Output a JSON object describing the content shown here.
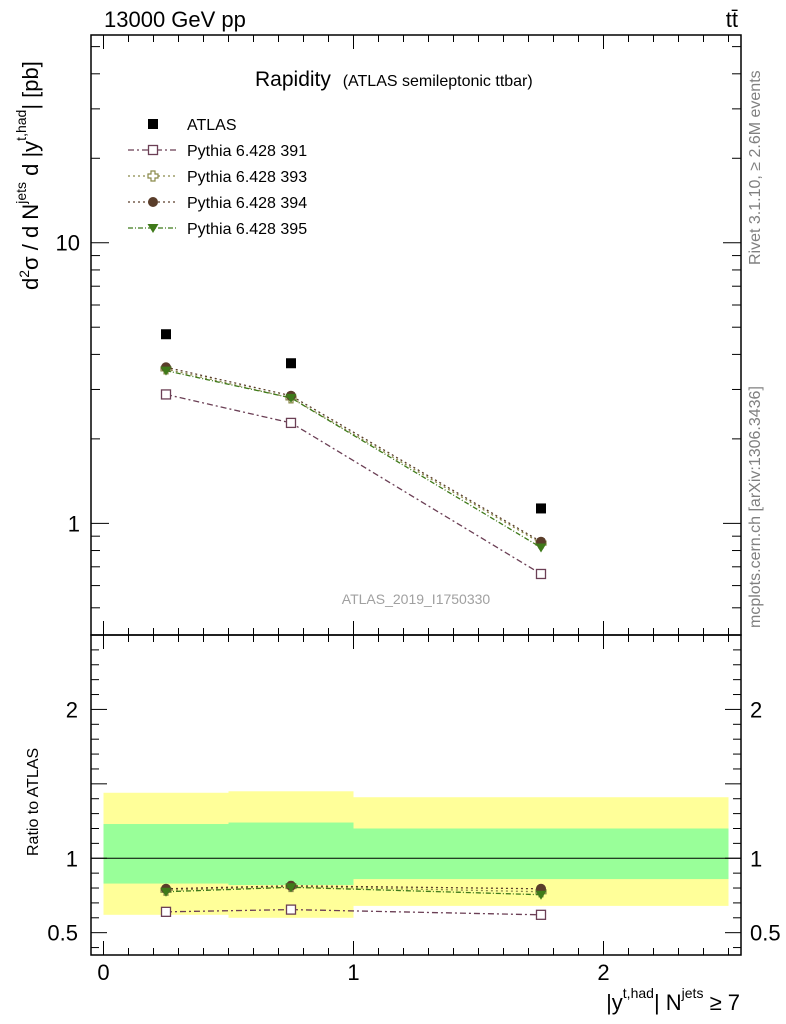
{
  "header": {
    "energy_label": "13000 GeV pp",
    "process_label": "tt̄"
  },
  "side_labels": {
    "rivet": "Rivet 3.1.10, ≥ 2.6M events",
    "mcplots": "mcplots.cern.ch [arXiv:1306.3436]"
  },
  "chart_data": {
    "type": "scatter",
    "title": "Rapidity",
    "subtitle": "(ATLAS semileptonic ttbar)",
    "watermark": "ATLAS_2019_I1750330",
    "x_axis": {
      "label_main": "|y",
      "label_sup": "t,had",
      "label_mid": "| N",
      "label_sup2": "jets",
      "label_tail": " ≥ 7",
      "range": [
        -0.05,
        2.55
      ],
      "major_ticks": [
        0,
        1,
        2
      ],
      "tick_labels": [
        "0",
        "1",
        "2"
      ]
    },
    "main_panel": {
      "y_label": {
        "d": "d",
        "two": "2",
        "sigma_part": "σ / d N",
        "jets": "jets",
        "mid": " d |y",
        "thad": "t,had",
        "tail": "| [pb]"
      },
      "y_scale": "log",
      "y_range": [
        0.4,
        55
      ],
      "tick_labels": [
        {
          "value": 1,
          "label": "1"
        },
        {
          "value": 10,
          "label": "10"
        }
      ],
      "series": [
        {
          "name": "ATLAS",
          "marker": "filled-square",
          "color": "#000000",
          "x": [
            0.25,
            0.75,
            1.75
          ],
          "y": [
            4.72,
            3.72,
            1.13
          ]
        },
        {
          "name": "Pythia 6.428 391",
          "marker": "open-square",
          "color": "#6b3f55",
          "dash": "6,3,2,3",
          "x": [
            0.25,
            0.75,
            1.75
          ],
          "y": [
            2.88,
            2.28,
            0.66
          ]
        },
        {
          "name": "Pythia 6.428 393",
          "marker": "open-cross",
          "color": "#8a8a4a",
          "dash": "2,3",
          "x": [
            0.25,
            0.75,
            1.75
          ],
          "y": [
            3.55,
            2.8,
            0.85
          ]
        },
        {
          "name": "Pythia 6.428 394",
          "marker": "filled-circle",
          "color": "#5a3d2a",
          "dash": "2,3",
          "x": [
            0.25,
            0.75,
            1.75
          ],
          "y": [
            3.6,
            2.85,
            0.86
          ]
        },
        {
          "name": "Pythia 6.428 395",
          "marker": "filled-triangle-down",
          "color": "#3f7a1a",
          "dash": "5,2,1,2",
          "x": [
            0.25,
            0.75,
            1.75
          ],
          "y": [
            3.5,
            2.8,
            0.82
          ]
        }
      ]
    },
    "ratio_panel": {
      "y_label": "Ratio to ATLAS",
      "y_range": [
        0.35,
        2.5
      ],
      "tick_labels": [
        {
          "value": 0.5,
          "label": "0.5"
        },
        {
          "value": 1,
          "label": "1"
        },
        {
          "value": 2,
          "label": "2"
        }
      ],
      "bins": [
        {
          "lo": 0,
          "hi": 0.5,
          "band68": [
            0.83,
            1.23
          ],
          "band95": [
            0.62,
            1.44
          ]
        },
        {
          "lo": 0.5,
          "hi": 1.0,
          "band68": [
            0.82,
            1.24
          ],
          "band95": [
            0.6,
            1.45
          ]
        },
        {
          "lo": 1.0,
          "hi": 2.5,
          "band68": [
            0.86,
            1.2
          ],
          "band95": [
            0.68,
            1.41
          ]
        }
      ],
      "band_colors": {
        "inner": "#99ff99",
        "outer": "#ffff99"
      },
      "series": [
        {
          "name": "Pythia 6.428 391",
          "x": [
            0.25,
            0.75,
            1.75
          ],
          "y": [
            0.64,
            0.655,
            0.62
          ]
        },
        {
          "name": "Pythia 6.428 393",
          "x": [
            0.25,
            0.75,
            1.75
          ],
          "y": [
            0.785,
            0.81,
            0.775
          ]
        },
        {
          "name": "Pythia 6.428 394",
          "x": [
            0.25,
            0.75,
            1.75
          ],
          "y": [
            0.795,
            0.815,
            0.795
          ]
        },
        {
          "name": "Pythia 6.428 395",
          "x": [
            0.25,
            0.75,
            1.75
          ],
          "y": [
            0.775,
            0.805,
            0.755
          ]
        }
      ]
    }
  }
}
